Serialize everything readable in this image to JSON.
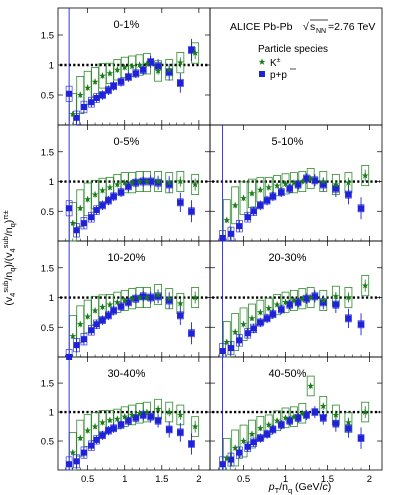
{
  "figure": {
    "header_text": "ALICE Pb-Pb",
    "energy_prefix": "s",
    "energy_sub": "NN",
    "energy_value": "=2.76 TeV",
    "legend_title": "Particle species",
    "ylabel_parts": [
      "(v",
      "4",
      "sub",
      "/n",
      "q",
      ")/(v",
      "4",
      "sub",
      "/n",
      "q",
      ")",
      "π±"
    ],
    "xlabel_parts": [
      "p",
      "T",
      "/n",
      "q",
      " (GeV/",
      "c",
      ")"
    ],
    "colors": {
      "kaon": "#1a7a1a",
      "proton": "#1f22d6",
      "kaon_box": "#2e8b2e",
      "proton_box": "#3a3ae0",
      "reference_line": "#000000",
      "frame": "#000000"
    },
    "markers": {
      "kaon": "star-icon",
      "proton": "square-icon"
    }
  },
  "chart_data": {
    "type": "scatter",
    "legend": [
      {
        "key": "kaon",
        "label": "K",
        "sup": "±",
        "marker": "star"
      },
      {
        "key": "proton",
        "label": "p+p",
        "overline_second_p": true,
        "marker": "square"
      }
    ],
    "x_axis": {
      "xlim": [
        0.1,
        2.15
      ],
      "ticks": [
        0.5,
        1,
        1.5,
        2
      ],
      "tick_labels": [
        "0.5",
        "1",
        "1.5",
        "2"
      ],
      "scale": "linear"
    },
    "y_axis": {
      "ylim": [
        0,
        1.95
      ],
      "ticks": [
        0.5,
        1,
        1.5
      ],
      "tick_labels": [
        "0.5",
        "1",
        "1.5"
      ],
      "scale": "linear"
    },
    "reference_y": 1,
    "panels": [
      {
        "label": "0-1%",
        "kaon": [
          [
            0.3,
            0.18
          ],
          [
            0.4,
            0.5
          ],
          [
            0.5,
            0.62
          ],
          [
            0.6,
            0.72
          ],
          [
            0.7,
            0.82
          ],
          [
            0.8,
            0.86
          ],
          [
            0.9,
            0.92
          ],
          [
            1.0,
            0.96
          ],
          [
            1.1,
            0.98
          ],
          [
            1.2,
            1.0
          ],
          [
            1.3,
            1.02
          ],
          [
            1.45,
            0.9
          ],
          [
            1.6,
            0.92
          ],
          [
            1.75,
            1.04
          ],
          [
            1.95,
            1.2
          ]
        ],
        "proton": [
          [
            0.25,
            0.52
          ],
          [
            0.35,
            0.12
          ],
          [
            0.45,
            0.3
          ],
          [
            0.55,
            0.38
          ],
          [
            0.62,
            0.45
          ],
          [
            0.7,
            0.5
          ],
          [
            0.78,
            0.58
          ],
          [
            0.85,
            0.65
          ],
          [
            0.95,
            0.72
          ],
          [
            1.05,
            0.8
          ],
          [
            1.15,
            0.86
          ],
          [
            1.25,
            0.92
          ],
          [
            1.35,
            1.05
          ],
          [
            1.45,
            0.98
          ],
          [
            1.6,
            0.88
          ],
          [
            1.75,
            0.7
          ],
          [
            1.9,
            1.25
          ]
        ]
      },
      {
        "label": "0-5%",
        "kaon": [
          [
            0.3,
            0.3
          ],
          [
            0.4,
            0.55
          ],
          [
            0.5,
            0.7
          ],
          [
            0.6,
            0.78
          ],
          [
            0.7,
            0.85
          ],
          [
            0.8,
            0.9
          ],
          [
            0.9,
            0.95
          ],
          [
            1.0,
            0.98
          ],
          [
            1.1,
            0.98
          ],
          [
            1.2,
            1.0
          ],
          [
            1.3,
            1.0
          ],
          [
            1.45,
            1.0
          ],
          [
            1.6,
            0.98
          ],
          [
            1.75,
            1.0
          ],
          [
            1.95,
            0.95
          ]
        ],
        "proton": [
          [
            0.25,
            0.55
          ],
          [
            0.35,
            0.18
          ],
          [
            0.45,
            0.3
          ],
          [
            0.55,
            0.4
          ],
          [
            0.62,
            0.52
          ],
          [
            0.7,
            0.6
          ],
          [
            0.78,
            0.68
          ],
          [
            0.85,
            0.75
          ],
          [
            0.95,
            0.82
          ],
          [
            1.05,
            0.92
          ],
          [
            1.15,
            0.98
          ],
          [
            1.25,
            1.0
          ],
          [
            1.35,
            1.0
          ],
          [
            1.45,
            0.98
          ],
          [
            1.6,
            0.95
          ],
          [
            1.75,
            0.65
          ],
          [
            1.9,
            0.5
          ]
        ]
      },
      {
        "label": "5-10%",
        "kaon": [
          [
            0.3,
            0.35
          ],
          [
            0.4,
            0.6
          ],
          [
            0.5,
            0.72
          ],
          [
            0.6,
            0.8
          ],
          [
            0.7,
            0.86
          ],
          [
            0.8,
            0.9
          ],
          [
            0.9,
            0.93
          ],
          [
            1.0,
            0.96
          ],
          [
            1.1,
            0.98
          ],
          [
            1.2,
            1.0
          ],
          [
            1.3,
            1.05
          ],
          [
            1.45,
            1.0
          ],
          [
            1.6,
            0.95
          ],
          [
            1.75,
            0.98
          ],
          [
            1.95,
            1.1
          ]
        ],
        "proton": [
          [
            0.25,
            0.05
          ],
          [
            0.35,
            0.12
          ],
          [
            0.45,
            0.25
          ],
          [
            0.55,
            0.4
          ],
          [
            0.62,
            0.5
          ],
          [
            0.7,
            0.6
          ],
          [
            0.78,
            0.68
          ],
          [
            0.85,
            0.75
          ],
          [
            0.95,
            0.82
          ],
          [
            1.05,
            0.88
          ],
          [
            1.15,
            0.95
          ],
          [
            1.25,
            1.05
          ],
          [
            1.35,
            1.02
          ],
          [
            1.45,
            0.95
          ],
          [
            1.6,
            0.88
          ],
          [
            1.75,
            0.78
          ],
          [
            1.9,
            0.55
          ]
        ]
      },
      {
        "label": "10-20%",
        "kaon": [
          [
            0.3,
            0.35
          ],
          [
            0.4,
            0.55
          ],
          [
            0.5,
            0.68
          ],
          [
            0.6,
            0.78
          ],
          [
            0.7,
            0.84
          ],
          [
            0.8,
            0.88
          ],
          [
            0.9,
            0.92
          ],
          [
            1.0,
            0.95
          ],
          [
            1.1,
            0.98
          ],
          [
            1.2,
            1.0
          ],
          [
            1.3,
            1.0
          ],
          [
            1.45,
            1.05
          ],
          [
            1.6,
            0.98
          ],
          [
            1.75,
            0.9
          ],
          [
            1.95,
            1.0
          ]
        ],
        "proton": [
          [
            0.25,
            0.0
          ],
          [
            0.35,
            0.2
          ],
          [
            0.45,
            0.3
          ],
          [
            0.55,
            0.45
          ],
          [
            0.62,
            0.55
          ],
          [
            0.7,
            0.62
          ],
          [
            0.78,
            0.7
          ],
          [
            0.85,
            0.78
          ],
          [
            0.95,
            0.85
          ],
          [
            1.05,
            0.92
          ],
          [
            1.15,
            0.98
          ],
          [
            1.25,
            1.02
          ],
          [
            1.35,
            1.0
          ],
          [
            1.45,
            1.02
          ],
          [
            1.6,
            0.95
          ],
          [
            1.75,
            0.7
          ],
          [
            1.9,
            0.4
          ]
        ]
      },
      {
        "label": "20-30%",
        "kaon": [
          [
            0.3,
            0.25
          ],
          [
            0.4,
            0.42
          ],
          [
            0.5,
            0.55
          ],
          [
            0.6,
            0.65
          ],
          [
            0.7,
            0.75
          ],
          [
            0.8,
            0.82
          ],
          [
            0.9,
            0.88
          ],
          [
            1.0,
            0.92
          ],
          [
            1.1,
            0.95
          ],
          [
            1.2,
            0.98
          ],
          [
            1.3,
            1.0
          ],
          [
            1.45,
            0.95
          ],
          [
            1.6,
            1.02
          ],
          [
            1.75,
            1.0
          ],
          [
            1.95,
            1.2
          ]
        ],
        "proton": [
          [
            0.25,
            0.1
          ],
          [
            0.35,
            0.15
          ],
          [
            0.45,
            0.28
          ],
          [
            0.55,
            0.4
          ],
          [
            0.62,
            0.48
          ],
          [
            0.7,
            0.58
          ],
          [
            0.78,
            0.65
          ],
          [
            0.85,
            0.72
          ],
          [
            0.95,
            0.8
          ],
          [
            1.05,
            0.88
          ],
          [
            1.15,
            0.92
          ],
          [
            1.25,
            0.98
          ],
          [
            1.35,
            1.02
          ],
          [
            1.45,
            0.92
          ],
          [
            1.6,
            0.88
          ],
          [
            1.75,
            0.65
          ],
          [
            1.9,
            0.55
          ]
        ]
      },
      {
        "label": "30-40%",
        "kaon": [
          [
            0.3,
            0.3
          ],
          [
            0.4,
            0.55
          ],
          [
            0.5,
            0.68
          ],
          [
            0.6,
            0.75
          ],
          [
            0.7,
            0.82
          ],
          [
            0.8,
            0.86
          ],
          [
            0.9,
            0.88
          ],
          [
            1.0,
            0.92
          ],
          [
            1.1,
            0.95
          ],
          [
            1.2,
            0.98
          ],
          [
            1.3,
            1.0
          ],
          [
            1.45,
            1.05
          ],
          [
            1.6,
            1.0
          ],
          [
            1.75,
            0.95
          ],
          [
            1.95,
            0.75
          ]
        ],
        "proton": [
          [
            0.25,
            0.1
          ],
          [
            0.35,
            0.15
          ],
          [
            0.45,
            0.3
          ],
          [
            0.55,
            0.42
          ],
          [
            0.62,
            0.52
          ],
          [
            0.7,
            0.6
          ],
          [
            0.78,
            0.68
          ],
          [
            0.85,
            0.72
          ],
          [
            0.95,
            0.78
          ],
          [
            1.05,
            0.85
          ],
          [
            1.15,
            0.9
          ],
          [
            1.25,
            0.95
          ],
          [
            1.35,
            0.92
          ],
          [
            1.45,
            0.85
          ],
          [
            1.6,
            0.7
          ],
          [
            1.75,
            0.65
          ],
          [
            1.9,
            0.45
          ]
        ]
      },
      {
        "label": "40-50%",
        "kaon": [
          [
            0.3,
            0.2
          ],
          [
            0.4,
            0.38
          ],
          [
            0.5,
            0.5
          ],
          [
            0.6,
            0.62
          ],
          [
            0.7,
            0.72
          ],
          [
            0.8,
            0.78
          ],
          [
            0.9,
            0.85
          ],
          [
            1.0,
            0.9
          ],
          [
            1.1,
            0.92
          ],
          [
            1.2,
            0.98
          ],
          [
            1.3,
            1.45
          ],
          [
            1.45,
            1.1
          ],
          [
            1.6,
            0.95
          ],
          [
            1.75,
            0.82
          ],
          [
            1.95,
            1.0
          ]
        ],
        "proton": [
          [
            0.25,
            0.1
          ],
          [
            0.35,
            0.18
          ],
          [
            0.45,
            0.3
          ],
          [
            0.55,
            0.4
          ],
          [
            0.62,
            0.48
          ],
          [
            0.7,
            0.55
          ],
          [
            0.78,
            0.62
          ],
          [
            0.85,
            0.7
          ],
          [
            0.95,
            0.78
          ],
          [
            1.05,
            0.85
          ],
          [
            1.15,
            0.9
          ],
          [
            1.25,
            0.95
          ],
          [
            1.35,
            1.0
          ],
          [
            1.45,
            0.9
          ],
          [
            1.6,
            0.8
          ],
          [
            1.75,
            0.72
          ],
          [
            1.9,
            0.55
          ]
        ]
      }
    ]
  }
}
